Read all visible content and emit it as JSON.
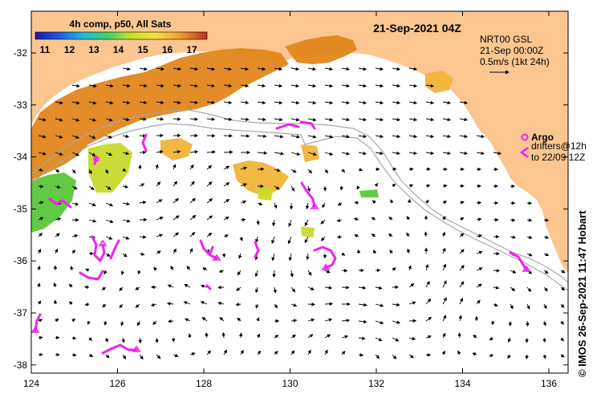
{
  "map": {
    "colorbar_title": "4h comp, p50, All Sats",
    "colorbar_ticks": [
      "11",
      "12",
      "13",
      "14",
      "15",
      "16",
      "17"
    ],
    "date_title": "21-Sep-2021 04Z",
    "legend": {
      "product": "NRT00 GSL",
      "time": "21-Sep 00:00Z",
      "scale": "0.5m/s (1kt 24h)",
      "argo_label": "Argo",
      "drifters_line1": "drifters@12h",
      "drifters_line2": "to 22/09 12Z"
    },
    "credit": "© IMOS 26-Sep-2021 11:47 Hobart",
    "lat_labels": [
      "-32",
      "-33",
      "-34",
      "-35",
      "-36",
      "-37",
      "-38"
    ],
    "lon_labels": [
      "124",
      "126",
      "128",
      "130",
      "132",
      "134",
      "136"
    ],
    "colors": {
      "land": "#fbc690",
      "ocean": "#ffffff",
      "sst_warm": "#e2861c",
      "sst_mid": "#f1b43a",
      "sst_cool": "#c8d92c",
      "sst_cold": "#58c83a",
      "drifter": "#ee22ee",
      "bathymetry": "#a8a8a8"
    }
  }
}
